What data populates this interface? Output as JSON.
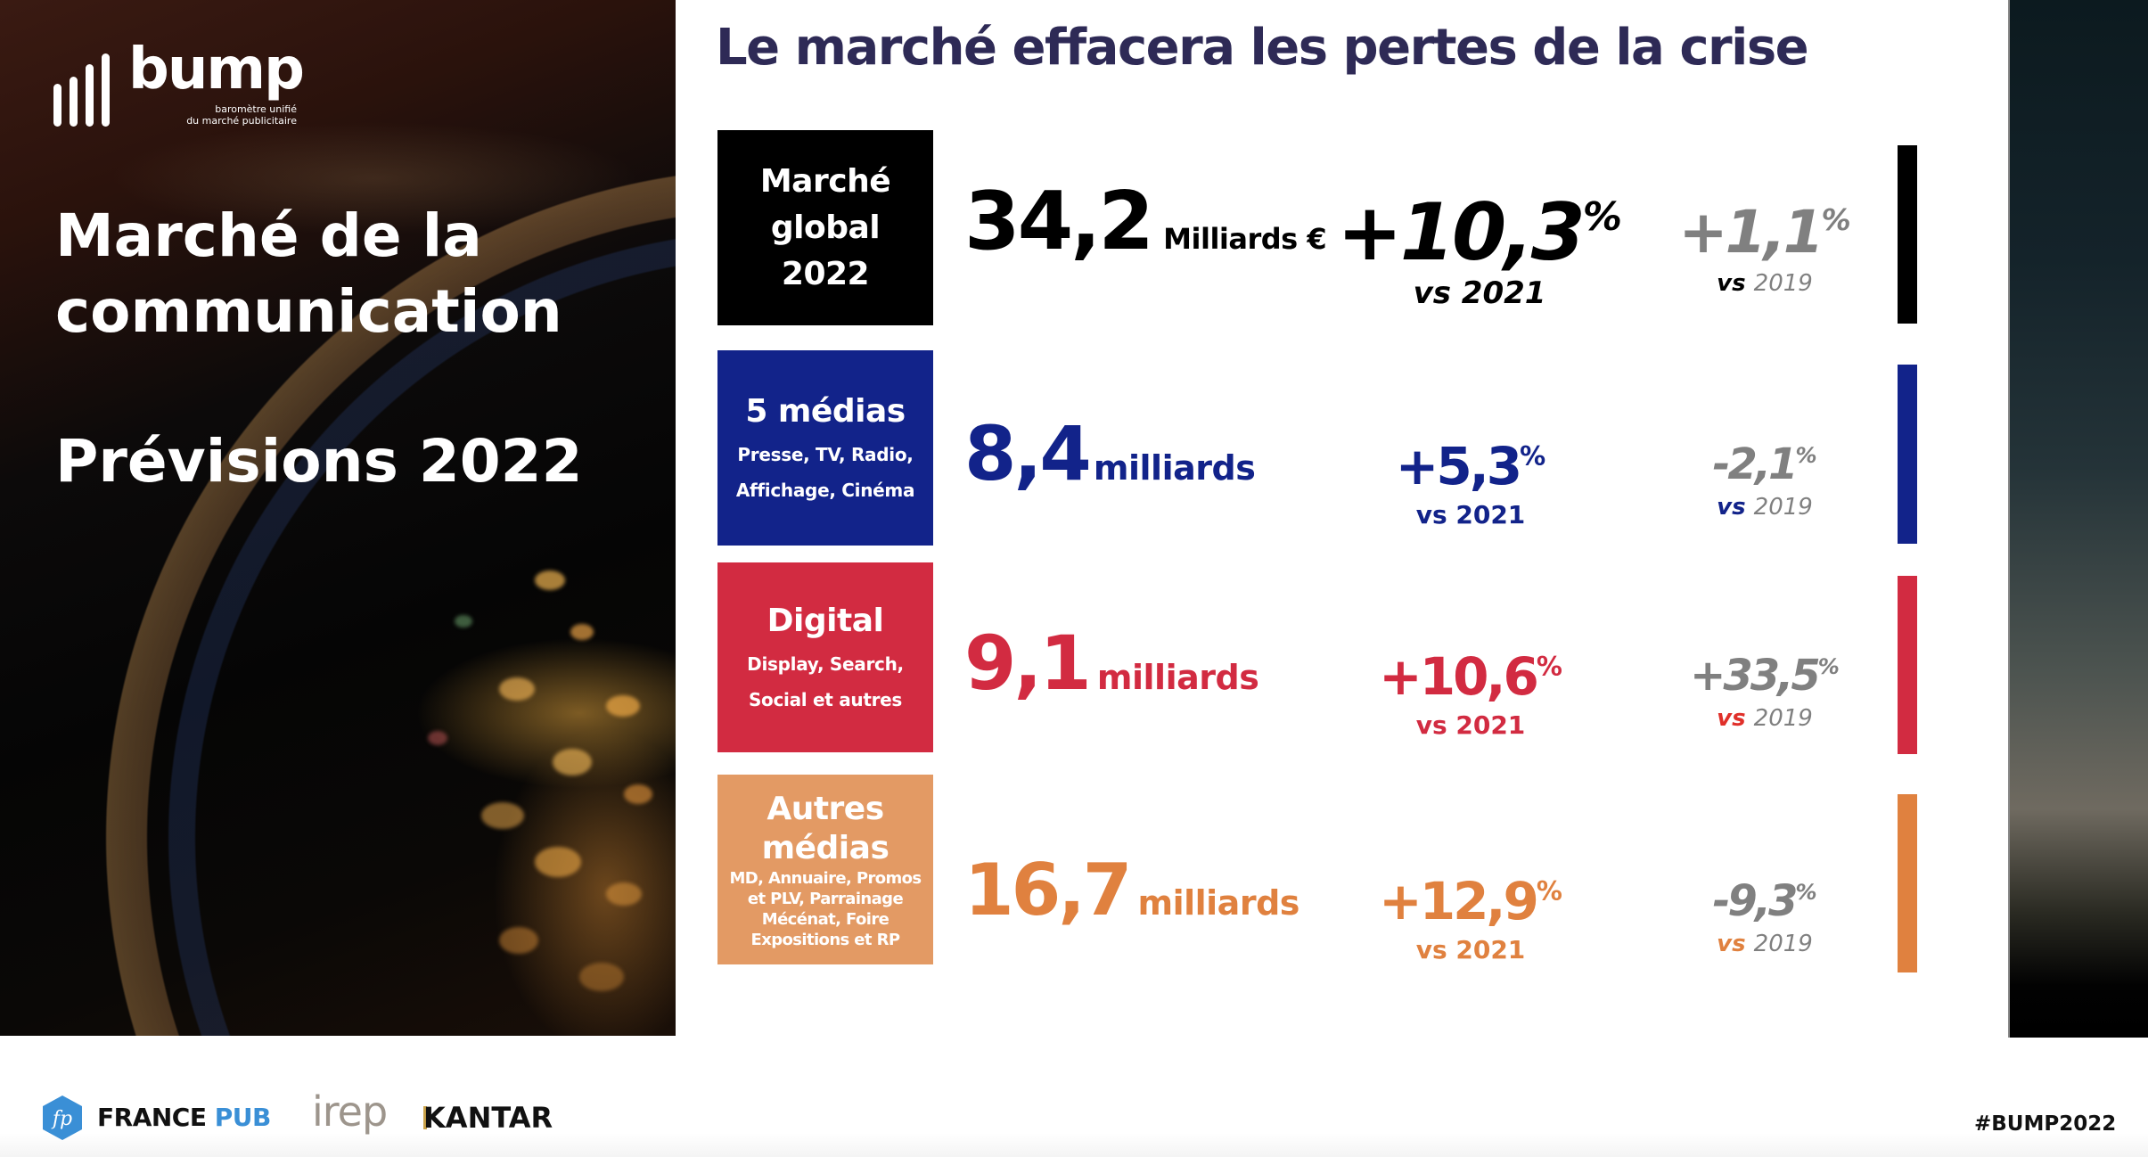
{
  "logo": {
    "name": "bump",
    "tagline_line1": "baromètre unifié",
    "tagline_line2": "du marché publicitaire"
  },
  "left_panel": {
    "title_line1": "Marché de la",
    "title_line2": "communication",
    "subtitle": "Prévisions 2022"
  },
  "header": {
    "title": "Le marché effacera les pertes de la crise"
  },
  "rows": [
    {
      "category": "Marché global 2022",
      "category_lines": [
        "Marché",
        "global",
        "2022"
      ],
      "category_sub_lines": [],
      "amount": "34,2",
      "unit": "Milliards €",
      "vs2021_value": "+10,3",
      "vs2021_pct": "%",
      "vs2021_label": "vs 2021",
      "vs2019_value": "+1,1",
      "vs2019_pct": "%",
      "vs2019_vs": "vs",
      "vs2019_year": "2019",
      "color": "#000000"
    },
    {
      "category": "5 médias",
      "category_lines": [
        "5 médias"
      ],
      "category_sub_lines": [
        "Presse, TV, Radio,",
        "Affichage, Cinéma"
      ],
      "amount": "8,4",
      "unit": "milliards",
      "vs2021_value": "+5,3",
      "vs2021_pct": "%",
      "vs2021_label": "vs 2021",
      "vs2019_value": "-2,1",
      "vs2019_pct": "%",
      "vs2019_vs": "vs",
      "vs2019_year": "2019",
      "color": "#12238a"
    },
    {
      "category": "Digital",
      "category_lines": [
        "Digital"
      ],
      "category_sub_lines": [
        "Display, Search,",
        "Social et autres"
      ],
      "amount": "9,1",
      "unit": "milliards",
      "vs2021_value": "+10,6",
      "vs2021_pct": "%",
      "vs2021_label": "vs 2021",
      "vs2019_value": "+33,5",
      "vs2019_pct": "%",
      "vs2019_vs": "vs",
      "vs2019_year": "2019",
      "color": "#d22b41"
    },
    {
      "category": "Autres médias",
      "category_lines": [
        "Autres",
        "médias"
      ],
      "category_sub_lines": [
        "MD, Annuaire, Promos",
        "et PLV, Parrainage",
        "Mécénat, Foire",
        "Expositions et RP"
      ],
      "amount": "16,7",
      "unit": "milliards",
      "vs2021_value": "+12,9",
      "vs2021_pct": "%",
      "vs2021_label": "vs 2021",
      "vs2019_value": "-9,3",
      "vs2019_pct": "%",
      "vs2019_vs": "vs",
      "vs2019_year": "2019",
      "color": "#e0813f",
      "box_color": "#e39a64"
    }
  ],
  "footer": {
    "partners": [
      {
        "name_part1": "FRANCE",
        "name_part2": "PUB",
        "icon": "fp-hexagon-icon",
        "icon_text": "fp"
      },
      {
        "name": "irep"
      },
      {
        "name": "KANTAR"
      }
    ],
    "hashtag": "#BUMP2022"
  },
  "colors": {
    "title": "#2e2a56",
    "muted": "#808080",
    "france_pub_blue": "#3a8fd6"
  }
}
